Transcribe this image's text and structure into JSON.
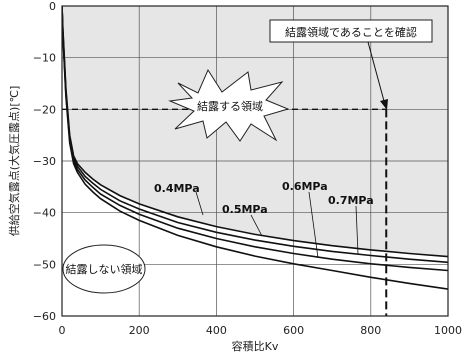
{
  "chart_data": {
    "type": "line",
    "xlabel": "容積比Kv",
    "ylabel": "供給空気露点(大気圧露点)[℃]",
    "xlim": [
      0,
      1000
    ],
    "ylim": [
      -60,
      0
    ],
    "x_ticks": [
      "0",
      "200",
      "400",
      "600",
      "800",
      "1000"
    ],
    "y_ticks": [
      "0",
      "−10",
      "−20",
      "−30",
      "−40",
      "−50",
      "−60"
    ],
    "grid": true,
    "series": [
      {
        "name": "0.4MPa",
        "x": [
          2,
          10,
          20,
          30,
          40,
          60,
          80,
          100,
          150,
          200,
          300,
          400,
          500,
          600,
          700,
          800,
          900,
          1000
        ],
        "values": [
          -4,
          -16,
          -25,
          -29,
          -30.5,
          -32.2,
          -33.5,
          -34.6,
          -36.7,
          -38.3,
          -40.8,
          -42.7,
          -44.2,
          -45.4,
          -46.4,
          -47.2,
          -47.9,
          -48.5
        ]
      },
      {
        "name": "0.5MPa",
        "x": [
          2,
          10,
          20,
          30,
          40,
          60,
          80,
          100,
          150,
          200,
          300,
          400,
          500,
          600,
          700,
          800,
          900,
          1000
        ],
        "values": [
          -4.5,
          -16.5,
          -25.5,
          -29.5,
          -31,
          -33,
          -34.3,
          -35.5,
          -37.7,
          -39.3,
          -41.9,
          -43.8,
          -45.3,
          -46.5,
          -47.5,
          -48.3,
          -49,
          -49.6
        ]
      },
      {
        "name": "0.6MPa",
        "x": [
          2,
          10,
          20,
          30,
          40,
          60,
          80,
          100,
          150,
          200,
          300,
          400,
          500,
          600,
          700,
          800,
          900,
          1000
        ],
        "values": [
          -5,
          -17,
          -26,
          -30,
          -31.6,
          -33.7,
          -35.1,
          -36.4,
          -38.6,
          -40.3,
          -43,
          -45,
          -46.6,
          -47.9,
          -49,
          -49.9,
          -50.6,
          -51.2
        ]
      },
      {
        "name": "0.7MPa",
        "x": [
          2,
          10,
          20,
          30,
          40,
          60,
          80,
          100,
          150,
          200,
          300,
          400,
          500,
          600,
          700,
          800,
          900,
          1000
        ],
        "values": [
          -5.5,
          -17.5,
          -26.5,
          -30.5,
          -32.2,
          -34.5,
          -36,
          -37.3,
          -39.7,
          -41.5,
          -44.4,
          -46.6,
          -48.4,
          -49.9,
          -51.2,
          -52.5,
          -53.7,
          -54.8
        ]
      }
    ],
    "annotations": {
      "condensation_region": "結露する領域",
      "no_condensation_region": "結露しない領域",
      "confirm_label": "結露領域であることを確認",
      "reference_point": {
        "x": 840,
        "y": -20
      }
    }
  }
}
